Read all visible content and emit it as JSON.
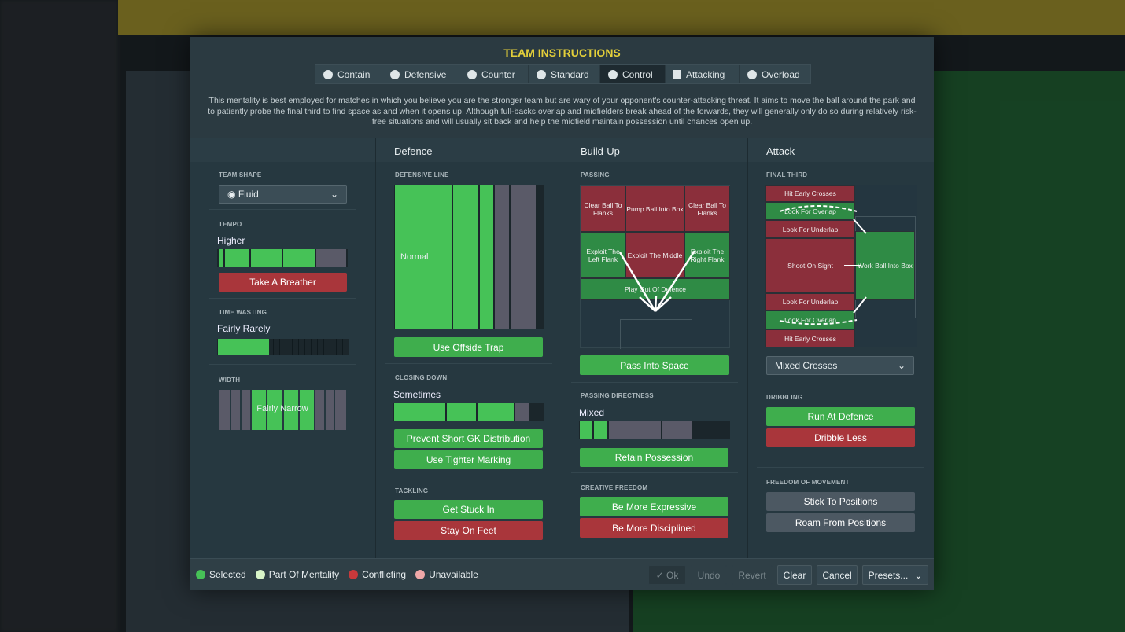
{
  "title": "TEAM INSTRUCTIONS",
  "tabs": [
    {
      "label": "Contain",
      "icon": "shield-heart-icon"
    },
    {
      "label": "Defensive",
      "icon": "shield-icon"
    },
    {
      "label": "Counter",
      "icon": "counter-icon"
    },
    {
      "label": "Standard",
      "icon": "standard-icon"
    },
    {
      "label": "Control",
      "icon": "control-icon",
      "selected": true
    },
    {
      "label": "Attacking",
      "icon": "attacking-arrow-icon"
    },
    {
      "label": "Overload",
      "icon": "overload-icon"
    }
  ],
  "description": "This mentality is best employed for matches in which you believe you are the stronger team but are wary of your opponent's counter-attacking threat. It aims to move the ball around the park and to patiently probe the final third to find space as and when it opens up. Although full-backs overlap and midfielders break ahead of the forwards, they will generally only do so during relatively risk-free situations and will usually sit back and help the midfield maintain possession until chances open up.",
  "columns": {
    "defence": "Defence",
    "buildup": "Build-Up",
    "attack": "Attack"
  },
  "left": {
    "team_shape": {
      "label": "TEAM SHAPE",
      "value": "Fluid"
    },
    "tempo": {
      "label": "TEMPO",
      "value": "Higher",
      "level_percent": 76,
      "button": "Take A Breather"
    },
    "time_wasting": {
      "label": "TIME WASTING",
      "value": "Fairly Rarely",
      "level_percent": 40
    },
    "width": {
      "label": "WIDTH",
      "value": "Fairly Narrow"
    }
  },
  "defence": {
    "defensive_line": {
      "label": "DEFENSIVE LINE",
      "value": "Normal",
      "button": "Use Offside Trap"
    },
    "closing_down": {
      "label": "CLOSING DOWN",
      "value": "Sometimes",
      "level_percent": 80,
      "buttons": [
        "Prevent Short GK Distribution",
        "Use Tighter Marking"
      ]
    },
    "tackling": {
      "label": "TACKLING",
      "buttons": [
        "Get Stuck In",
        "Stay On Feet"
      ]
    }
  },
  "buildup": {
    "passing": {
      "label": "PASSING",
      "tiles": [
        "Clear Ball To Flanks",
        "Pump Ball Into Box",
        "Clear Ball To Flanks",
        "Exploit The Left Flank",
        "Exploit The Middle",
        "Exploit The Right Flank",
        "Play Out Of Defence"
      ],
      "button": "Pass Into Space"
    },
    "directness": {
      "label": "PASSING DIRECTNESS",
      "value": "Mixed",
      "button": "Retain Possession"
    },
    "creative": {
      "label": "CREATIVE FREEDOM",
      "buttons": [
        "Be More Expressive",
        "Be More Disciplined"
      ]
    }
  },
  "attack": {
    "final_third": {
      "label": "FINAL THIRD",
      "tiles": [
        "Hit Early Crosses",
        "Look For Overlap",
        "Look For Underlap",
        "Shoot On Sight",
        "Look For Underlap",
        "Look For Overlap",
        "Hit Early Crosses",
        "Work Ball Into Box"
      ],
      "crossing": "Mixed Crosses"
    },
    "dribbling": {
      "label": "DRIBBLING",
      "buttons": [
        "Run At Defence",
        "Dribble Less"
      ]
    },
    "freedom": {
      "label": "FREEDOM OF MOVEMENT",
      "buttons": [
        "Stick To Positions",
        "Roam From Positions"
      ]
    }
  },
  "legend": [
    {
      "label": "Selected",
      "color": "#46c257"
    },
    {
      "label": "Part Of Mentality",
      "color": "#d8f5c8"
    },
    {
      "label": "Conflicting",
      "color": "#c8393b"
    },
    {
      "label": "Unavailable",
      "color": "#f0a8a8"
    }
  ],
  "footer": {
    "ok": "✓ Ok",
    "undo": "Undo",
    "revert": "Revert",
    "clear": "Clear",
    "cancel": "Cancel",
    "presets": "Presets..."
  }
}
